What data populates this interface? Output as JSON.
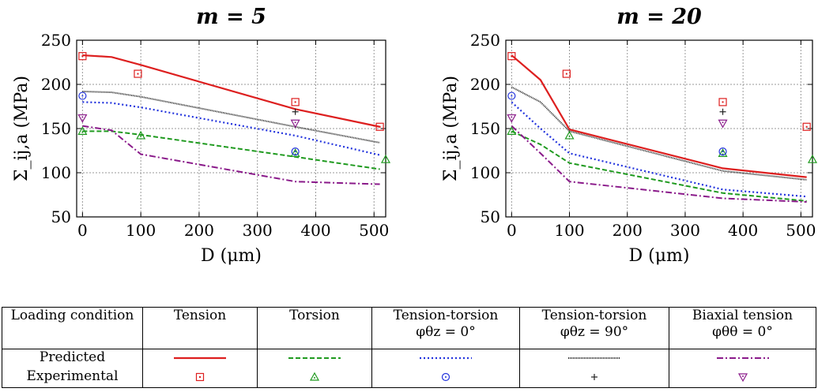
{
  "colors": {
    "Tension": "#dd1f1f",
    "Torsion": "#1f9a1f",
    "Tension-torsion 0": "#2233dd",
    "Tension-torsion 90": "#222222",
    "Biaxial tension": "#8a1a8a"
  },
  "chart_data": [
    {
      "type": "line",
      "title": "m = 5",
      "xlabel": "D (μm)",
      "ylabel": "Σ_ij,a (MPa)",
      "xlim": [
        -10,
        520
      ],
      "ylim": [
        50,
        250
      ],
      "xticks": [
        0,
        100,
        200,
        300,
        400,
        500
      ],
      "yticks": [
        50,
        100,
        150,
        200,
        250
      ],
      "grid": true,
      "series": [
        {
          "name": "Tension",
          "style": "solid",
          "x": [
            0,
            50,
            100,
            365,
            510
          ],
          "y": [
            233,
            231,
            222,
            172,
            152
          ]
        },
        {
          "name": "Torsion",
          "style": "dashed",
          "x": [
            0,
            50,
            100,
            365,
            510
          ],
          "y": [
            147,
            147,
            143,
            118,
            104
          ]
        },
        {
          "name": "Tension-torsion 0",
          "style": "dotted",
          "x": [
            0,
            50,
            100,
            365,
            510
          ],
          "y": [
            180,
            179,
            174,
            142,
            120
          ]
        },
        {
          "name": "Tension-torsion 90",
          "style": "dense",
          "x": [
            0,
            50,
            100,
            365,
            510
          ],
          "y": [
            192,
            191,
            186,
            152,
            134
          ]
        },
        {
          "name": "Biaxial tension",
          "style": "dashdot",
          "x": [
            0,
            50,
            100,
            365,
            510
          ],
          "y": [
            153,
            148,
            121,
            90,
            87
          ]
        }
      ],
      "experimental": [
        {
          "name": "Tension",
          "marker": "square",
          "x": [
            0,
            95,
            365,
            510
          ],
          "y": [
            232,
            212,
            180,
            152
          ]
        },
        {
          "name": "Torsion",
          "marker": "triangle-up",
          "x": [
            0,
            100,
            365,
            520
          ],
          "y": [
            147,
            142,
            122,
            115
          ]
        },
        {
          "name": "Tension-torsion 0",
          "marker": "circle",
          "x": [
            0,
            365
          ],
          "y": [
            187,
            124
          ]
        },
        {
          "name": "Tension-torsion 90",
          "marker": "plus",
          "x": [
            365
          ],
          "y": [
            169
          ]
        },
        {
          "name": "Biaxial tension",
          "marker": "triangle-down",
          "x": [
            0,
            365
          ],
          "y": [
            162,
            156
          ]
        }
      ]
    },
    {
      "type": "line",
      "title": "m = 20",
      "xlabel": "D (μm)",
      "ylabel": "Σ_ij,a (MPa)",
      "xlim": [
        -10,
        520
      ],
      "ylim": [
        50,
        250
      ],
      "xticks": [
        0,
        100,
        200,
        300,
        400,
        500
      ],
      "yticks": [
        50,
        100,
        150,
        200,
        250
      ],
      "grid": true,
      "series": [
        {
          "name": "Tension",
          "style": "solid",
          "x": [
            0,
            50,
            100,
            365,
            510
          ],
          "y": [
            233,
            205,
            149,
            105,
            95
          ]
        },
        {
          "name": "Torsion",
          "style": "dashed",
          "x": [
            0,
            50,
            100,
            365,
            510
          ],
          "y": [
            147,
            132,
            111,
            77,
            68
          ]
        },
        {
          "name": "Tension-torsion 0",
          "style": "dotted",
          "x": [
            0,
            50,
            100,
            365,
            510
          ],
          "y": [
            180,
            150,
            122,
            81,
            73
          ]
        },
        {
          "name": "Tension-torsion 90",
          "style": "dense",
          "x": [
            0,
            50,
            100,
            365,
            510
          ],
          "y": [
            197,
            180,
            147,
            102,
            92
          ]
        },
        {
          "name": "Biaxial tension",
          "style": "dashdot",
          "x": [
            0,
            50,
            100,
            365,
            510
          ],
          "y": [
            153,
            122,
            90,
            71,
            67
          ]
        }
      ],
      "experimental": [
        {
          "name": "Tension",
          "marker": "square",
          "x": [
            0,
            95,
            365,
            510
          ],
          "y": [
            232,
            212,
            180,
            152
          ]
        },
        {
          "name": "Torsion",
          "marker": "triangle-up",
          "x": [
            0,
            100,
            365,
            520
          ],
          "y": [
            147,
            142,
            122,
            115
          ]
        },
        {
          "name": "Tension-torsion 0",
          "marker": "circle",
          "x": [
            0,
            365
          ],
          "y": [
            187,
            124
          ]
        },
        {
          "name": "Tension-torsion 90",
          "marker": "plus",
          "x": [
            365
          ],
          "y": [
            169
          ]
        },
        {
          "name": "Biaxial tension",
          "marker": "triangle-down",
          "x": [
            0,
            365
          ],
          "y": [
            162,
            156
          ]
        }
      ]
    }
  ],
  "legend": {
    "header": "Loading condition",
    "row_predicted": "Predicted",
    "row_experimental": "Experimental",
    "columns": [
      {
        "title": "Tension",
        "sub": ""
      },
      {
        "title": "Torsion",
        "sub": ""
      },
      {
        "title": "Tension-torsion",
        "sub": "φθz = 0°"
      },
      {
        "title": "Tension-torsion",
        "sub": "φθz = 90°"
      },
      {
        "title": "Biaxial tension",
        "sub": "φθθ = 0°"
      }
    ]
  }
}
